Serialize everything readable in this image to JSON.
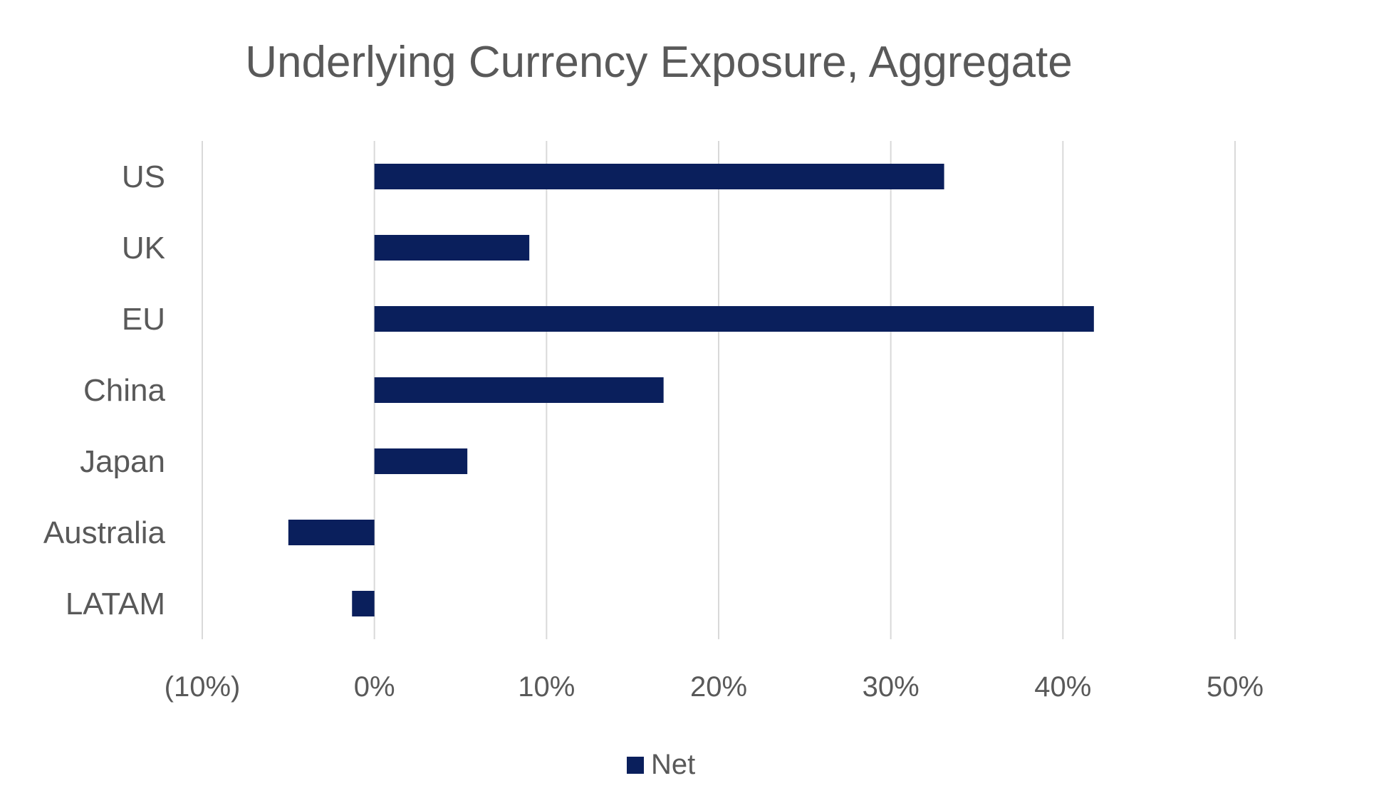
{
  "chart_data": {
    "type": "bar",
    "orientation": "horizontal",
    "title": "Underlying Currency Exposure, Aggregate",
    "categories": [
      "US",
      "UK",
      "EU",
      "China",
      "Japan",
      "Australia",
      "LATAM"
    ],
    "series": [
      {
        "name": "Net",
        "values": [
          33.1,
          9.0,
          41.8,
          16.8,
          5.4,
          -5.0,
          -1.3
        ]
      }
    ],
    "xlim": [
      -10,
      50
    ],
    "xticks": [
      -10,
      0,
      10,
      20,
      30,
      40,
      50
    ],
    "xtick_labels": [
      "(10%)",
      "0%",
      "10%",
      "20%",
      "30%",
      "40%",
      "50%"
    ],
    "grid": "vertical",
    "legend": "bottom",
    "colors": {
      "bar": "#0a1f5c",
      "grid": "#d9d9d9",
      "text": "#595959"
    }
  }
}
